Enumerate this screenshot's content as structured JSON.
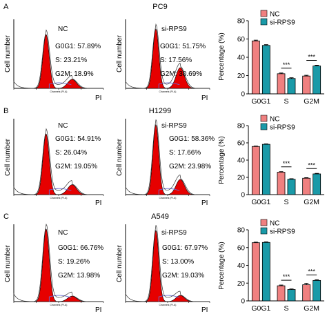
{
  "figure": {
    "row_ticks": [
      "0",
      "20",
      "40",
      "60",
      "80"
    ],
    "bar_ylabel": "Percentage (%)",
    "flow_ylabel": "Cell number",
    "flow_xlabel": "PI",
    "channel_label": "Channels (PI-A)",
    "legend": [
      "NC",
      "si-RPS9"
    ],
    "colors": {
      "NC": "#f08080",
      "si-RPS9": "#1a9aa8",
      "peak": "#e60000",
      "fit": "#6a6ad0"
    },
    "sig_label": "***"
  },
  "rows": [
    {
      "panel_letter": "A",
      "cell_line": "PC9",
      "flow": [
        {
          "group": "NC",
          "g0g1": "G0G1: 57.89%",
          "s": "S: 23.21%",
          "g2m": "G2M: 18.9%",
          "peak_heights": [
            0.78,
            0.13
          ]
        },
        {
          "group": "si-RPS9",
          "g0g1": "G0G1: 51.75%",
          "s": "S: 17.56%",
          "g2m": "G2M: 30.69%",
          "peak_heights": [
            0.86,
            0.3
          ]
        }
      ]
    },
    {
      "panel_letter": "B",
      "cell_line": "H1299",
      "flow": [
        {
          "group": "NC",
          "g0g1": "G0G1: 54.91%",
          "s": "S: 26.04%",
          "g2m": "G2M: 19.05%",
          "peak_heights": [
            0.8,
            0.13
          ]
        },
        {
          "group": "si-RPS9",
          "g0g1": "G0G1: 58.36%",
          "s": "S: 17.66%",
          "g2m": "G2M: 23.98%",
          "peak_heights": [
            0.92,
            0.2
          ]
        }
      ]
    },
    {
      "panel_letter": "C",
      "cell_line": "A549",
      "flow": [
        {
          "group": "NC",
          "g0g1": "G0G1: 66.76%",
          "s": "S: 19.26%",
          "g2m": "G2M: 13.98%",
          "peak_heights": [
            0.94,
            0.07
          ]
        },
        {
          "group": "si-RPS9",
          "g0g1": "G0G1: 67.97%",
          "s": "S: 13.00%",
          "g2m": "G2M: 19.03%",
          "peak_heights": [
            0.92,
            0.08
          ]
        }
      ]
    }
  ],
  "chart_data": [
    {
      "type": "bar",
      "cell_line": "PC9",
      "categories": [
        "G0G1",
        "S",
        "G2M"
      ],
      "ylabel": "Percentage (%)",
      "ylim": [
        0,
        80
      ],
      "series": [
        {
          "name": "NC",
          "values": [
            57.9,
            22.0,
            19.5
          ],
          "errors": [
            0.8,
            0.8,
            0.8
          ]
        },
        {
          "name": "si-RPS9",
          "values": [
            53.0,
            16.8,
            30.5
          ],
          "errors": [
            0.8,
            0.8,
            0.8
          ]
        }
      ],
      "significance": [
        {
          "category": "S",
          "label": "***"
        },
        {
          "category": "G2M",
          "label": "***"
        }
      ],
      "legend": "top-right",
      "grid": false
    },
    {
      "type": "bar",
      "cell_line": "H1299",
      "categories": [
        "G0G1",
        "S",
        "G2M"
      ],
      "ylabel": "Percentage (%)",
      "ylim": [
        0,
        80
      ],
      "series": [
        {
          "name": "NC",
          "values": [
            55.8,
            26.0,
            19.0
          ],
          "errors": [
            0.5,
            0.6,
            0.6
          ]
        },
        {
          "name": "si-RPS9",
          "values": [
            58.3,
            17.8,
            24.0
          ],
          "errors": [
            0.5,
            0.6,
            0.6
          ]
        }
      ],
      "significance": [
        {
          "category": "S",
          "label": "***"
        },
        {
          "category": "G2M",
          "label": "***"
        }
      ],
      "legend": "top-right",
      "grid": false
    },
    {
      "type": "bar",
      "cell_line": "A549",
      "categories": [
        "G0G1",
        "S",
        "G2M"
      ],
      "ylabel": "Percentage (%)",
      "ylim": [
        0,
        80
      ],
      "series": [
        {
          "name": "NC",
          "values": [
            65.5,
            17.0,
            18.2
          ],
          "errors": [
            0.6,
            0.8,
            1.5
          ]
        },
        {
          "name": "si-RPS9",
          "values": [
            65.8,
            12.8,
            23.0
          ],
          "errors": [
            0.6,
            0.6,
            0.8
          ]
        }
      ],
      "significance": [
        {
          "category": "S",
          "label": "***"
        },
        {
          "category": "G2M",
          "label": "***"
        }
      ],
      "legend": "top-right",
      "grid": false
    }
  ]
}
